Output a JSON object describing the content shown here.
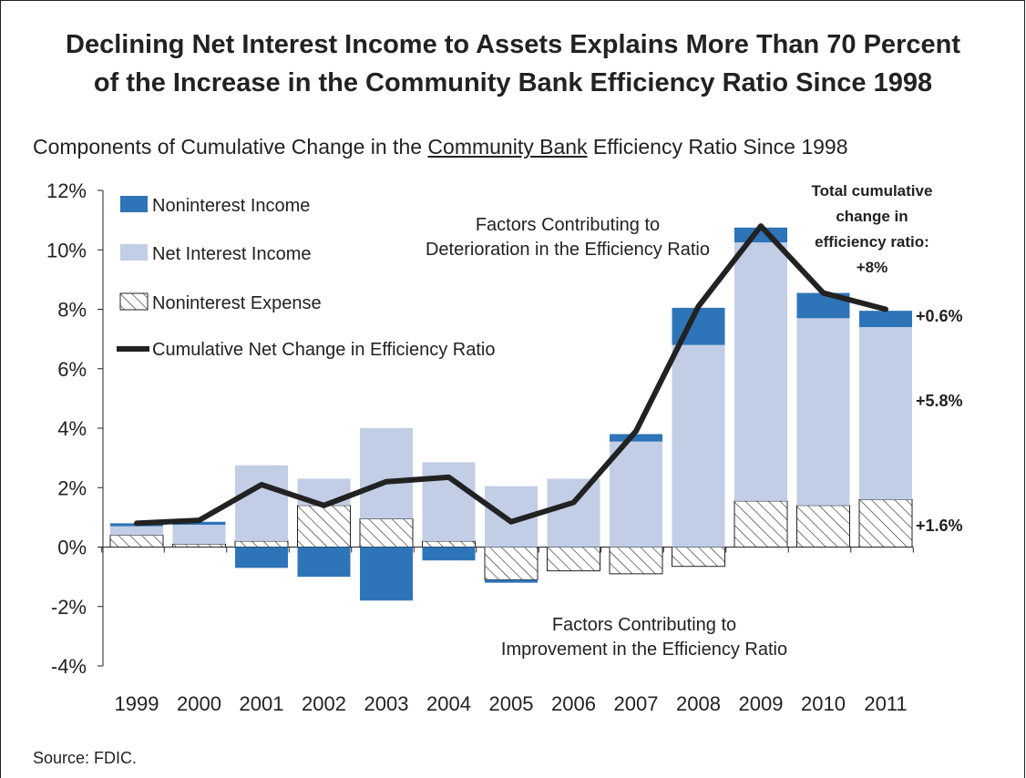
{
  "title": {
    "line1": "Declining Net Interest Income to Assets Explains More Than 70 Percent",
    "line2": "of the Increase in the Community Bank Efficiency Ratio Since 1998"
  },
  "subtitle": {
    "before": "Components of Cumulative Change in the ",
    "underlined": "Community Bank",
    "after": " Efficiency Ratio Since 1998"
  },
  "source": "Source: FDIC.",
  "colors": {
    "noninterest_income": "#2e74b8",
    "net_interest_income": "#c2cde6",
    "noninterest_expense_hatch": "#222222",
    "net_change_line": "#222222"
  },
  "chart_data": {
    "type": "bar",
    "stacked": true,
    "categories": [
      "1999",
      "2000",
      "2001",
      "2002",
      "2003",
      "2004",
      "2005",
      "2006",
      "2007",
      "2008",
      "2009",
      "2010",
      "2011"
    ],
    "ylim": [
      -4,
      12
    ],
    "yticks": [
      -4,
      -2,
      0,
      2,
      4,
      6,
      8,
      10,
      12
    ],
    "ytick_labels": [
      "-4%",
      "-2%",
      "0%",
      "2%",
      "4%",
      "6%",
      "8%",
      "10%",
      "12%"
    ],
    "grid": false,
    "legend_position": "top-left",
    "series": [
      {
        "name": "Noninterest Expense",
        "style": "hatch",
        "values": [
          0.4,
          0.1,
          0.2,
          1.4,
          0.95,
          0.2,
          -1.1,
          -0.8,
          -0.9,
          -0.65,
          1.55,
          1.4,
          1.6
        ]
      },
      {
        "name": "Net Interest Income",
        "style": "fill",
        "values": [
          0.3,
          0.65,
          2.55,
          0.9,
          3.05,
          2.65,
          2.05,
          2.3,
          3.55,
          6.8,
          8.7,
          6.3,
          5.8
        ]
      },
      {
        "name": "Noninterest Income",
        "style": "fill",
        "values": [
          0.1,
          0.1,
          -0.7,
          -1.0,
          -1.8,
          -0.45,
          -0.1,
          0,
          0.25,
          1.25,
          0.5,
          0.85,
          0.55
        ]
      }
    ],
    "line_series": {
      "name": "Cumulative Net Change in Efficiency Ratio",
      "values": [
        0.8,
        0.9,
        2.1,
        1.4,
        2.2,
        2.35,
        0.85,
        1.5,
        3.9,
        8.1,
        10.8,
        8.55,
        8.0
      ]
    },
    "annotations": {
      "top_text_line1": "Factors Contributing to",
      "top_text_line2": "Deterioration in the Efficiency Ratio",
      "bottom_text_line1": "Factors Contributing to",
      "bottom_text_line2": "Improvement in the Efficiency Ratio",
      "total_line1": "Total cumulative",
      "total_line2": "change in",
      "total_line3": "efficiency ratio:",
      "total_line4": "+8%",
      "label_noninterest_income": "+0.6%",
      "label_net_interest_income": "+5.8%",
      "label_noninterest_expense": "+1.6%"
    }
  }
}
